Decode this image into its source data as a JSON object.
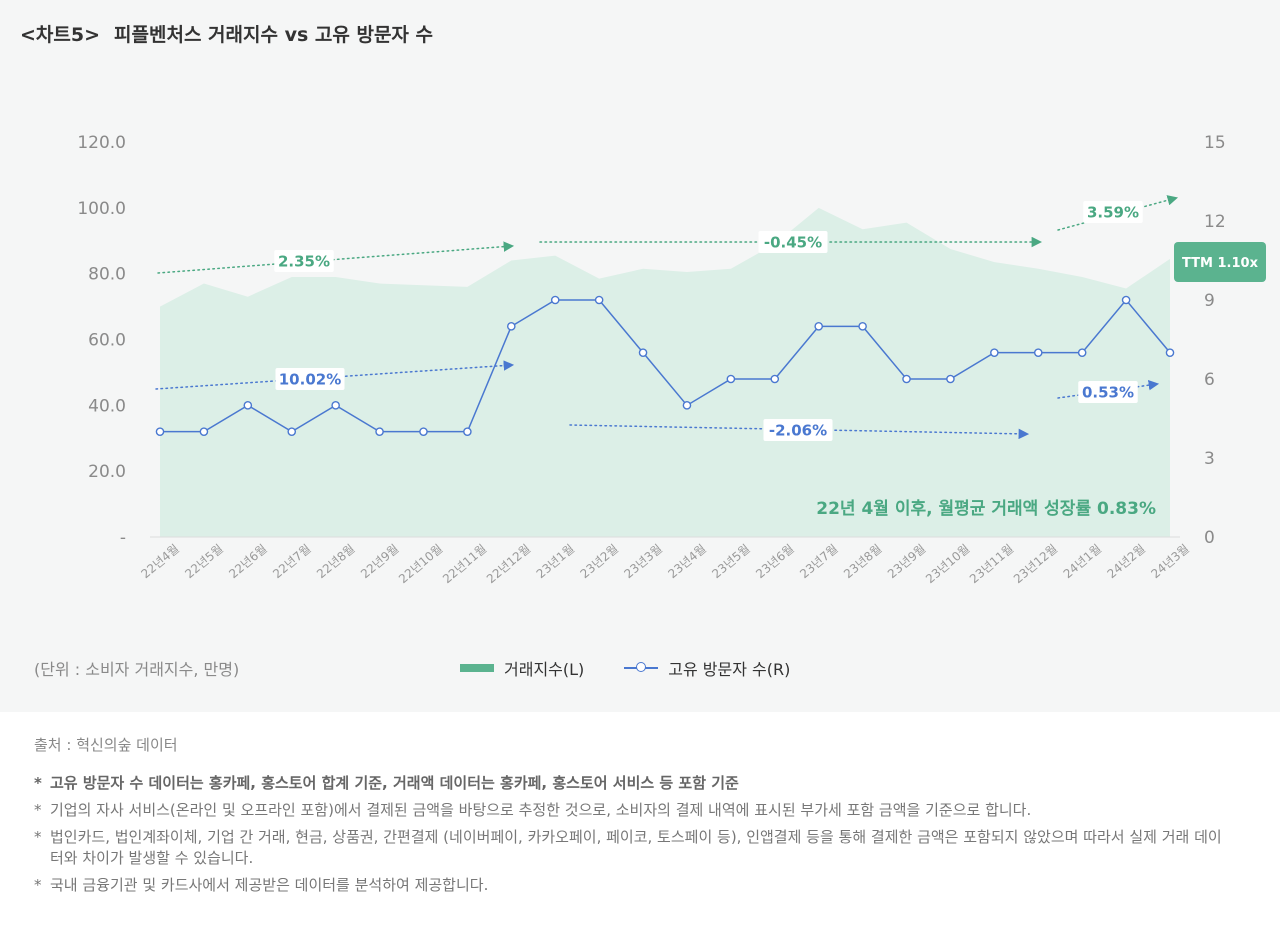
{
  "title": {
    "tag": "<차트5>",
    "text": "피플벤처스 거래지수 vs 고유 방문자 수"
  },
  "chart_data": {
    "type": "line",
    "categories": [
      "22년4월",
      "22년5월",
      "22년6월",
      "22년7월",
      "22년8월",
      "22년9월",
      "22년10월",
      "22년11월",
      "22년12월",
      "23년1월",
      "23년2월",
      "23년3월",
      "23년4월",
      "23년5월",
      "23년6월",
      "23년7월",
      "23년8월",
      "23년9월",
      "23년10월",
      "23년11월",
      "23년12월",
      "24년1월",
      "24년2월",
      "24년3월"
    ],
    "left_axis": {
      "ylim": [
        0,
        120
      ],
      "tick_labels": [
        "-",
        "20.0",
        "40.0",
        "60.0",
        "80.0",
        "100.0",
        "120.0"
      ]
    },
    "right_axis": {
      "ylim": [
        0,
        15
      ],
      "tick_labels": [
        "0",
        "3",
        "6",
        "9",
        "12",
        "15"
      ]
    },
    "series": [
      {
        "name": "거래지수(L)",
        "type": "area",
        "axis": "left",
        "color": "#dcefe7",
        "values": [
          70,
          77,
          73,
          79,
          79,
          77,
          76.5,
          76,
          84,
          85.5,
          78.5,
          81.5,
          80.5,
          81.5,
          89,
          100,
          93.5,
          95.5,
          87.5,
          83.5,
          81.5,
          79,
          75.5,
          84.5
        ]
      },
      {
        "name": "고유 방문자 수(R)",
        "type": "line",
        "axis": "right",
        "color": "#4a78d0",
        "values": [
          4,
          4,
          5,
          4,
          5,
          4,
          4,
          4,
          8,
          9,
          9,
          7,
          5,
          6,
          6,
          8,
          8,
          6,
          6,
          7,
          7,
          7,
          9,
          7
        ]
      }
    ],
    "annotations": [
      {
        "label": "2.35%",
        "color": "#4aa882"
      },
      {
        "label": "-0.45%",
        "color": "#4aa882"
      },
      {
        "label": "3.59%",
        "color": "#4aa882"
      },
      {
        "label": "10.02%",
        "color": "#4a78d0"
      },
      {
        "label": "-2.06%",
        "color": "#4a78d0"
      },
      {
        "label": "0.53%",
        "color": "#4a78d0"
      }
    ],
    "badge": "TTM 1.10x",
    "highlight": "22년 4월 이후, 월평균 거래액 성장률 0.83%",
    "unit_note": "(단위 : 소비자 거래지수, 만명)",
    "legend_placement": "bottom-center"
  },
  "legend": {
    "area_label": "거래지수(L)",
    "line_label": "고유 방문자 수(R)"
  },
  "footer": {
    "source": "출처 : 혁신의숲 데이터",
    "notes": [
      "고유 방문자 수 데이터는 홍카페, 홍스토어 합계 기준, 거래액 데이터는 홍카페, 홍스토어 서비스 등 포함 기준",
      "기업의 자사 서비스(온라인 및 오프라인 포함)에서 결제된 금액을 바탕으로 추정한 것으로, 소비자의 결제 내역에 표시된 부가세 포함 금액을 기준으로 합니다.",
      "법인카드, 법인계좌이체, 기업 간 거래, 현금, 상품권, 간편결제 (네이버페이, 카카오페이, 페이코, 토스페이 등), 인앱결제 등을 통해 결제한 금액은 포함되지 않았으며 따라서 실제 거래 데이터와 차이가 발생할 수 있습니다.",
      "국내 금융기관 및 카드사에서 제공받은 데이터를 분석하여 제공합니다."
    ],
    "star": "*"
  }
}
